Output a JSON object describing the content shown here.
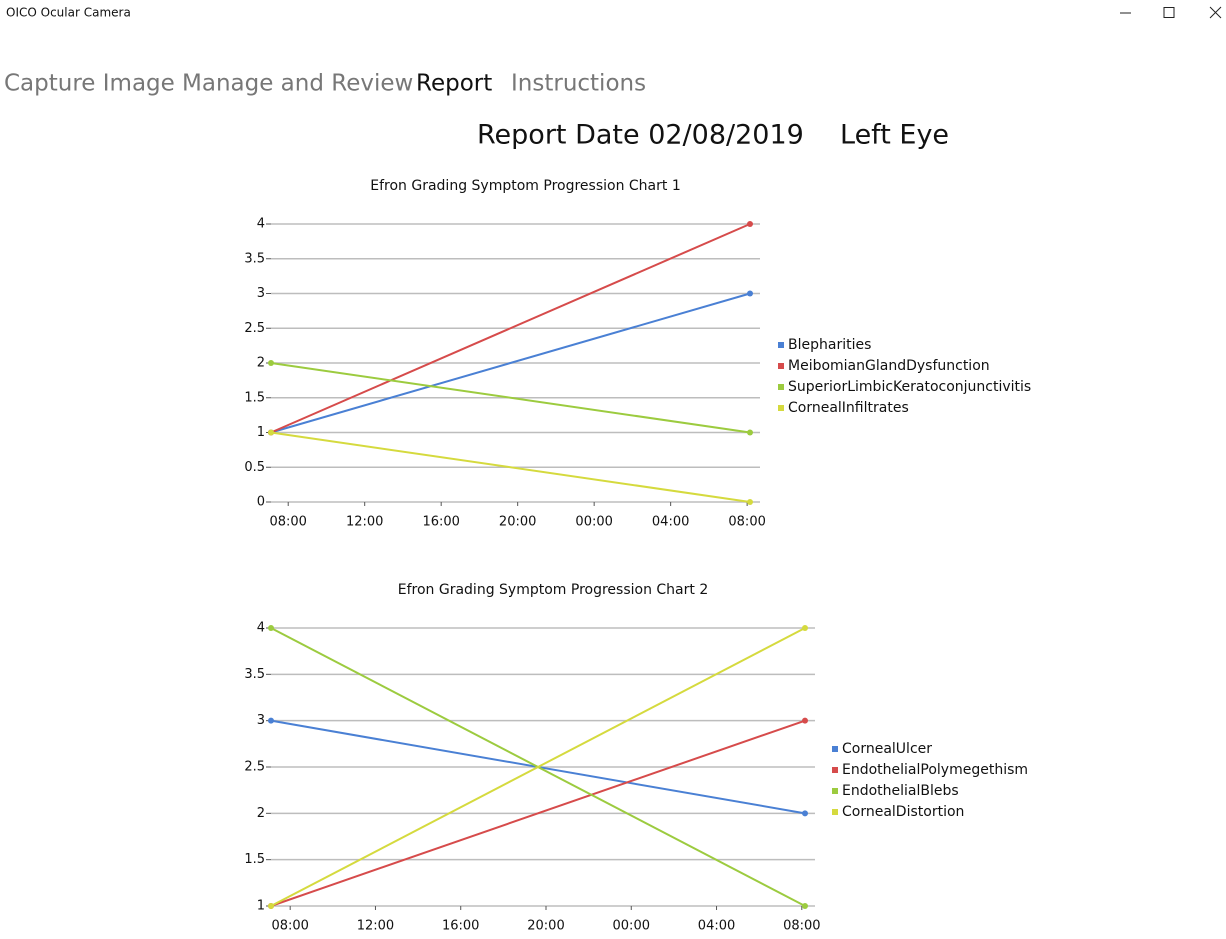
{
  "window": {
    "title": "OICO Ocular Camera"
  },
  "tabs": [
    "Capture Image",
    "Manage and Review",
    "Report",
    "Instructions"
  ],
  "report": {
    "date": "Report Date 02/08/2019",
    "eye": "Left Eye"
  },
  "chart_data": [
    {
      "type": "line",
      "title": "Efron Grading Symptom Progression Chart 1",
      "x": [
        7.1,
        32.15
      ],
      "xlim": [
        7.1,
        32.15
      ],
      "xticks": [
        {
          "value": 8,
          "label": "08:00"
        },
        {
          "value": 12,
          "label": "12:00"
        },
        {
          "value": 16,
          "label": "16:00"
        },
        {
          "value": 20,
          "label": "20:00"
        },
        {
          "value": 24,
          "label": "00:00"
        },
        {
          "value": 28,
          "label": "04:00"
        },
        {
          "value": 32,
          "label": "08:00"
        }
      ],
      "ylim": [
        0,
        4
      ],
      "yticks": [
        0,
        0.5,
        1,
        1.5,
        2,
        2.5,
        3,
        3.5,
        4
      ],
      "grid": true,
      "series": [
        {
          "name": "Blepharities",
          "color": "#4a80d4",
          "values": [
            1,
            3
          ]
        },
        {
          "name": "MeibomianGlandDysfunction",
          "color": "#d64b4b",
          "values": [
            1,
            4
          ]
        },
        {
          "name": "SuperiorLimbicKeratoconjunctivitis",
          "color": "#9ccb3f",
          "values": [
            2,
            1
          ]
        },
        {
          "name": "CornealInfiltrates",
          "color": "#d5da3e",
          "values": [
            1,
            0
          ]
        }
      ]
    },
    {
      "type": "line",
      "title": "Efron Grading Symptom Progression Chart 2",
      "x": [
        7.1,
        32.15
      ],
      "xlim": [
        7.1,
        32.15
      ],
      "xticks": [
        {
          "value": 8,
          "label": "08:00"
        },
        {
          "value": 12,
          "label": "12:00"
        },
        {
          "value": 16,
          "label": "16:00"
        },
        {
          "value": 20,
          "label": "20:00"
        },
        {
          "value": 24,
          "label": "00:00"
        },
        {
          "value": 28,
          "label": "04:00"
        },
        {
          "value": 32,
          "label": "08:00"
        }
      ],
      "ylim": [
        1,
        4
      ],
      "yticks": [
        1,
        1.5,
        2,
        2.5,
        3,
        3.5,
        4
      ],
      "grid": true,
      "series": [
        {
          "name": "CornealUlcer",
          "color": "#4a80d4",
          "values": [
            3,
            2
          ]
        },
        {
          "name": "EndothelialPolymegethism",
          "color": "#d64b4b",
          "values": [
            1,
            3
          ]
        },
        {
          "name": "EndothelialBlebs",
          "color": "#9ccb3f",
          "values": [
            4,
            1
          ]
        },
        {
          "name": "CornealDistortion",
          "color": "#d5da3e",
          "values": [
            1,
            4
          ]
        }
      ]
    }
  ]
}
